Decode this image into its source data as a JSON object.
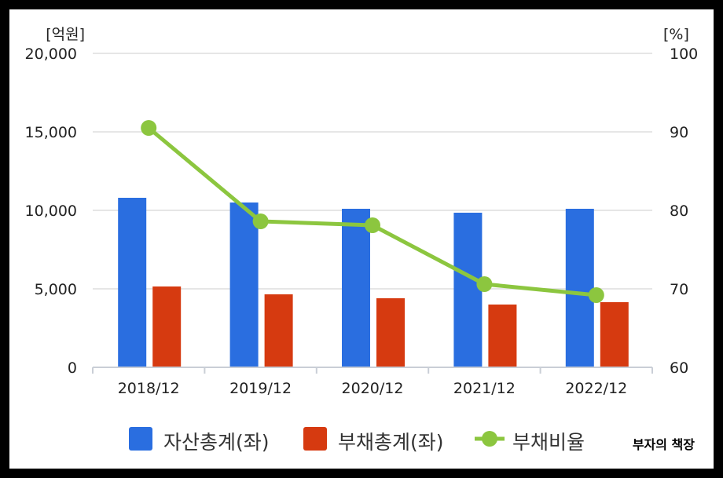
{
  "chart_data": {
    "type": "bar+line",
    "categories": [
      "2018/12",
      "2019/12",
      "2020/12",
      "2021/12",
      "2022/12"
    ],
    "series": [
      {
        "name": "자산총계(좌)",
        "type": "bar",
        "axis": "left",
        "color": "#2a6ee0",
        "values": [
          10800,
          10500,
          10100,
          9850,
          10100
        ]
      },
      {
        "name": "부채총계(좌)",
        "type": "bar",
        "axis": "left",
        "color": "#d63a10",
        "values": [
          5150,
          4650,
          4400,
          4000,
          4150
        ]
      },
      {
        "name": "부채비율",
        "type": "line",
        "axis": "right",
        "color": "#8cc63f",
        "values": [
          90.5,
          78.6,
          78.1,
          70.6,
          69.2
        ]
      }
    ],
    "y_left": {
      "unit_label": "[억원]",
      "range": [
        0,
        20000
      ],
      "ticks": [
        "0",
        "5,000",
        "10,000",
        "15,000",
        "20,000"
      ]
    },
    "y_right": {
      "unit_label": "[%]",
      "range": [
        60,
        100
      ],
      "ticks": [
        "60",
        "70",
        "80",
        "90",
        "100"
      ]
    },
    "grid": true,
    "legend_position": "bottom"
  },
  "watermark": "부자의 책장"
}
